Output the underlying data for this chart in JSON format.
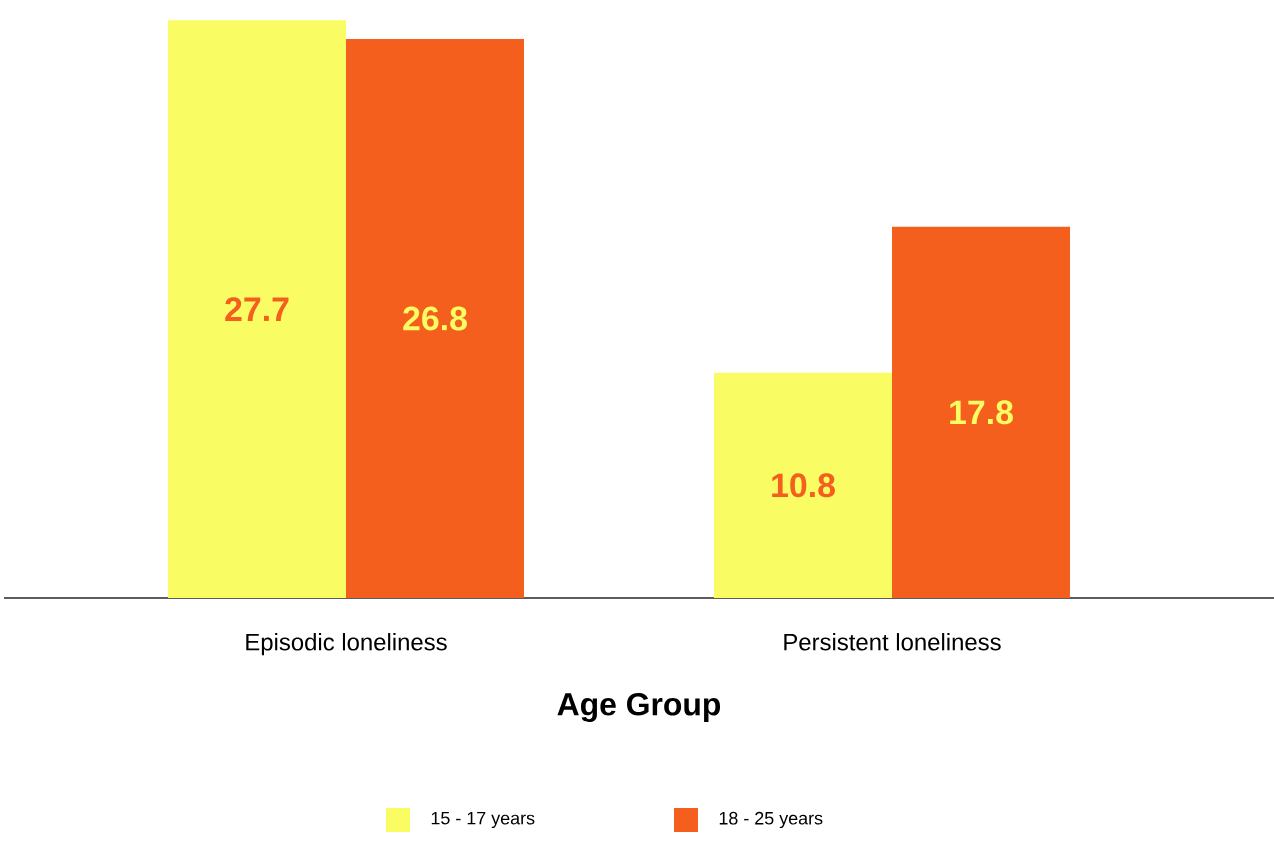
{
  "chart_data": {
    "type": "bar",
    "xlabel": "Age Group",
    "categories": [
      "Episodic loneliness",
      "Persistent loneliness"
    ],
    "series": [
      {
        "name": "15 - 17 years",
        "color": "#fafc64",
        "values": [
          27.7,
          10.8
        ]
      },
      {
        "name": "18 - 25 years",
        "color": "#f55f1e",
        "values": [
          26.8,
          17.8
        ]
      }
    ],
    "data_labels": true,
    "legend": "bottom"
  }
}
